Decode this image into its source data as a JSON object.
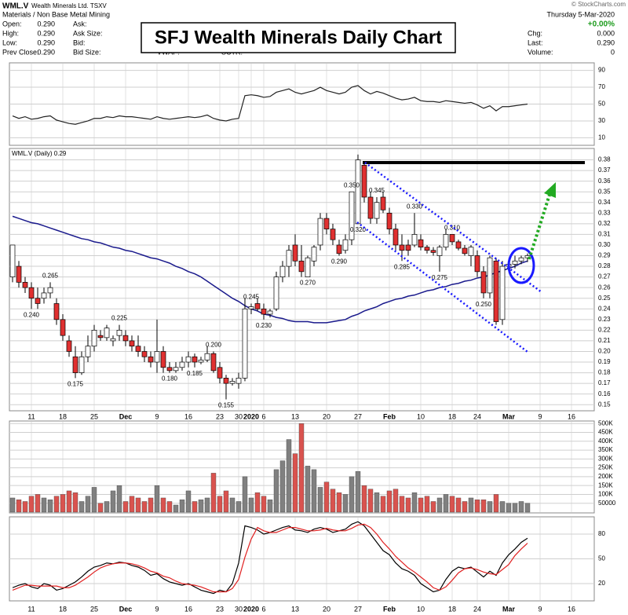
{
  "header": {
    "symbol": "WML.V",
    "name": "Wealth Minerals Ltd. TSXV",
    "sector": "Materials / Non Base Metal Mining",
    "date": "Thursday  5-Mar-2020",
    "copyright": "© StockCharts.com",
    "title": "SFJ Wealth Minerals Daily Chart",
    "fields": [
      [
        "Open:",
        "0.290"
      ],
      [
        "High:",
        "0.290"
      ],
      [
        "Low:",
        "0.290"
      ],
      [
        "Prev Close:",
        "0.290"
      ]
    ],
    "quote": [
      "Ask:",
      "Ask Size:",
      "Bid:",
      "Bid Size:"
    ],
    "vwap": "VWAP:",
    "sctr": "SCTR:",
    "change_pct": "+0.00%",
    "right": [
      [
        "Chg:",
        "0.000"
      ],
      [
        "Last:",
        "0.290"
      ],
      [
        "Volume:",
        "0"
      ]
    ]
  },
  "chart_data": [
    {
      "type": "line",
      "color": "#222222",
      "ylim": [
        2,
        98
      ],
      "yticks": [
        10,
        30,
        50,
        70,
        90
      ],
      "grid": true,
      "values": [
        36,
        33,
        35,
        32,
        33,
        35,
        36,
        31,
        29,
        27,
        26,
        28,
        30,
        33,
        33,
        35,
        34,
        36,
        35,
        35,
        34,
        33,
        32,
        35,
        33,
        32,
        33,
        34,
        35,
        34,
        35,
        37,
        33,
        31,
        30,
        32,
        33,
        60,
        61,
        60,
        58,
        59,
        64,
        66,
        68,
        64,
        62,
        64,
        66,
        70,
        66,
        64,
        62,
        64,
        70,
        72,
        66,
        62,
        65,
        63,
        60,
        57,
        55,
        56,
        58,
        54,
        53,
        53,
        52,
        54,
        53,
        52,
        51,
        52,
        49,
        45,
        48,
        42,
        47,
        47,
        48,
        49,
        50
      ]
    },
    {
      "type": "candlestick",
      "legend": "WML.V (Daily) 0.29",
      "up_color": "#ffffff",
      "down_color": "#e03030",
      "ma_color": "#1a1a8c",
      "ylim": [
        0.145,
        0.39
      ],
      "grid": true,
      "yticks": [
        0.15,
        0.16,
        0.17,
        0.18,
        0.19,
        {
          "value": 0.2,
          "label": "0.20"
        },
        0.21,
        0.22,
        0.23,
        0.24,
        0.25,
        0.26,
        0.27,
        0.28,
        0.29,
        {
          "value": 0.3,
          "label": "0.30"
        },
        0.31,
        0.32,
        0.33,
        0.34,
        0.35,
        0.36,
        0.37,
        0.38
      ],
      "categories": [
        null,
        null,
        null,
        "11",
        null,
        null,
        null,
        null,
        "18",
        null,
        null,
        null,
        null,
        "25",
        null,
        null,
        null,
        null,
        "Dec",
        null,
        null,
        null,
        null,
        "9",
        null,
        null,
        null,
        null,
        "16",
        null,
        null,
        null,
        null,
        "23",
        null,
        null,
        "30",
        null,
        "2020",
        null,
        "6",
        null,
        null,
        null,
        null,
        "13",
        null,
        null,
        null,
        null,
        "20",
        null,
        null,
        null,
        null,
        "27",
        null,
        null,
        null,
        null,
        "Feb",
        null,
        null,
        null,
        null,
        "10",
        null,
        null,
        null,
        null,
        "18",
        null,
        null,
        null,
        "24",
        null,
        null,
        null,
        null,
        "Mar",
        null,
        null,
        null,
        null,
        "9",
        null,
        null,
        null,
        null,
        "16",
        null,
        null,
        null
      ],
      "open": [
        0.27,
        0.28,
        0.265,
        0.26,
        0.25,
        0.25,
        0.255,
        0.245,
        0.23,
        0.21,
        0.195,
        0.18,
        0.195,
        0.205,
        0.215,
        0.213,
        0.21,
        0.215,
        0.215,
        0.21,
        0.205,
        0.2,
        0.195,
        0.19,
        0.2,
        0.185,
        0.182,
        0.185,
        0.19,
        0.195,
        0.19,
        0.192,
        0.198,
        0.185,
        0.175,
        0.17,
        0.17,
        0.175,
        0.24,
        0.245,
        0.24,
        0.235,
        0.24,
        0.27,
        0.28,
        0.3,
        0.285,
        0.27,
        0.285,
        0.3,
        0.325,
        0.315,
        0.3,
        0.295,
        0.305,
        0.32,
        0.375,
        0.345,
        0.325,
        0.345,
        0.33,
        0.315,
        0.3,
        0.3,
        0.3,
        0.305,
        0.298,
        0.295,
        0.29,
        0.298,
        0.31,
        0.303,
        0.297,
        0.29,
        0.29,
        0.275,
        0.255,
        0.285,
        0.23,
        0.28,
        0.282,
        0.285,
        0.288,
        null,
        null,
        null,
        null,
        null,
        null,
        null,
        null,
        null,
        null
      ],
      "high": [
        0.3,
        0.285,
        0.27,
        0.265,
        0.26,
        0.26,
        0.265,
        0.25,
        0.235,
        0.215,
        0.205,
        0.2,
        0.215,
        0.225,
        0.22,
        0.225,
        0.215,
        0.225,
        0.22,
        0.215,
        0.215,
        0.205,
        0.2,
        0.23,
        0.205,
        0.19,
        0.19,
        0.195,
        0.2,
        0.198,
        0.195,
        0.205,
        0.2,
        0.19,
        0.178,
        0.175,
        0.18,
        0.25,
        0.245,
        0.25,
        0.245,
        0.24,
        0.275,
        0.285,
        0.3,
        0.31,
        0.3,
        0.29,
        0.3,
        0.33,
        0.33,
        0.32,
        0.305,
        0.31,
        0.35,
        0.385,
        0.378,
        0.35,
        0.345,
        0.35,
        0.335,
        0.32,
        0.31,
        0.305,
        0.33,
        0.31,
        0.3,
        0.298,
        0.3,
        0.315,
        0.31,
        0.305,
        0.3,
        0.3,
        0.295,
        0.28,
        0.29,
        0.288,
        0.285,
        0.285,
        0.29,
        0.29,
        0.292,
        null,
        null,
        null,
        null,
        null,
        null,
        null,
        null,
        null,
        null
      ],
      "low": [
        0.265,
        0.26,
        0.255,
        0.24,
        0.24,
        0.245,
        0.25,
        0.225,
        0.21,
        0.195,
        0.175,
        0.178,
        0.19,
        0.2,
        0.21,
        0.21,
        0.205,
        0.21,
        0.205,
        0.2,
        0.195,
        0.19,
        0.185,
        0.18,
        0.18,
        0.18,
        0.18,
        0.182,
        0.185,
        0.185,
        0.188,
        0.19,
        0.18,
        0.17,
        0.155,
        0.168,
        0.165,
        0.172,
        0.235,
        0.238,
        0.23,
        0.232,
        0.238,
        0.265,
        0.27,
        0.28,
        0.27,
        0.27,
        0.28,
        0.295,
        0.31,
        0.3,
        0.29,
        0.292,
        0.3,
        0.32,
        0.34,
        0.32,
        0.32,
        0.33,
        0.31,
        0.295,
        0.285,
        0.29,
        0.298,
        0.295,
        0.292,
        0.29,
        0.275,
        0.295,
        0.3,
        0.295,
        0.29,
        0.28,
        0.27,
        0.25,
        0.25,
        0.225,
        0.225,
        0.275,
        0.278,
        0.282,
        0.284,
        null,
        null,
        null,
        null,
        null,
        null,
        null,
        null,
        null,
        null
      ],
      "close": [
        0.3,
        0.265,
        0.26,
        0.25,
        0.245,
        0.255,
        0.26,
        0.23,
        0.215,
        0.2,
        0.18,
        0.195,
        0.205,
        0.22,
        0.213,
        0.222,
        0.212,
        0.22,
        0.21,
        0.205,
        0.2,
        0.195,
        0.19,
        0.2,
        0.185,
        0.182,
        0.185,
        0.19,
        0.195,
        0.19,
        0.192,
        0.198,
        0.182,
        0.175,
        0.17,
        0.172,
        0.175,
        0.24,
        0.242,
        0.24,
        0.235,
        0.238,
        0.27,
        0.28,
        0.295,
        0.285,
        0.275,
        0.288,
        0.298,
        0.325,
        0.315,
        0.305,
        0.292,
        0.305,
        0.35,
        0.38,
        0.345,
        0.325,
        0.34,
        0.333,
        0.315,
        0.3,
        0.295,
        0.295,
        0.31,
        0.298,
        0.295,
        0.293,
        0.298,
        0.31,
        0.303,
        0.297,
        0.292,
        0.298,
        0.275,
        0.255,
        0.288,
        0.228,
        0.28,
        0.282,
        0.285,
        0.288,
        0.29,
        null,
        null,
        null,
        null,
        null,
        null,
        null,
        null,
        null,
        null
      ],
      "ma_values": [
        0.327,
        0.325,
        0.323,
        0.321,
        0.32,
        0.318,
        0.316,
        0.314,
        0.312,
        0.31,
        0.308,
        0.306,
        0.305,
        0.303,
        0.302,
        0.3,
        0.298,
        0.297,
        0.295,
        0.294,
        0.292,
        0.29,
        0.288,
        0.287,
        0.285,
        0.283,
        0.28,
        0.278,
        0.275,
        0.273,
        0.27,
        0.266,
        0.262,
        0.258,
        0.254,
        0.25,
        0.247,
        0.243,
        0.24,
        0.238,
        0.235,
        0.234,
        0.232,
        0.231,
        0.229,
        0.228,
        0.228,
        0.228,
        0.227,
        0.227,
        0.227,
        0.228,
        0.229,
        0.23,
        0.233,
        0.235,
        0.238,
        0.24,
        0.242,
        0.245,
        0.247,
        0.249,
        0.25,
        0.252,
        0.253,
        0.255,
        0.257,
        0.258,
        0.26,
        0.261,
        0.263,
        0.264,
        0.266,
        0.267,
        0.269,
        0.27,
        0.272,
        0.274,
        0.276,
        0.278,
        0.28,
        0.283,
        0.285,
        null,
        null,
        null,
        null,
        null,
        null,
        null,
        null,
        null,
        null
      ],
      "annotations": [
        {
          "at": 3,
          "value": 0.24,
          "label": "0.240"
        },
        {
          "at": 6,
          "value": 0.265,
          "label": "0.265"
        },
        {
          "at": 10,
          "value": 0.175,
          "label": "0.175"
        },
        {
          "at": 17,
          "value": 0.225,
          "label": "0.225"
        },
        {
          "at": 25,
          "value": 0.18,
          "label": "0.180"
        },
        {
          "at": 29,
          "value": 0.185,
          "label": "0.185"
        },
        {
          "at": 32,
          "value": 0.2,
          "label": "0.200"
        },
        {
          "at": 34,
          "value": 0.155,
          "label": "0.155"
        },
        {
          "at": 38,
          "value": 0.245,
          "label": "0.245"
        },
        {
          "at": 40,
          "value": 0.23,
          "label": "0.230"
        },
        {
          "at": 47,
          "value": 0.27,
          "label": "0.270"
        },
        {
          "at": 52,
          "value": 0.29,
          "label": "0.290"
        },
        {
          "at": 54,
          "value": 0.35,
          "label": "0.350"
        },
        {
          "at": 55,
          "value": 0.32,
          "label": "0.320"
        },
        {
          "at": 58,
          "value": 0.345,
          "label": "0.345"
        },
        {
          "at": 62,
          "value": 0.285,
          "label": "0.285"
        },
        {
          "at": 64,
          "value": 0.33,
          "label": "0.330"
        },
        {
          "at": 68,
          "value": 0.275,
          "label": "0.275"
        },
        {
          "at": 70,
          "value": 0.31,
          "label": "0.310"
        },
        {
          "at": 75,
          "value": 0.25,
          "label": "0.250"
        }
      ]
    },
    {
      "type": "bar",
      "up_color": "#808080",
      "down_color": "#d9534f",
      "ylim": [
        0,
        510000
      ],
      "grid": true,
      "yticks": [
        {
          "value": 500000,
          "label": "500K"
        },
        {
          "value": 450000,
          "label": "450K"
        },
        {
          "value": 400000,
          "label": "400K"
        },
        {
          "value": 350000,
          "label": "350K"
        },
        {
          "value": 300000,
          "label": "300K"
        },
        {
          "value": 250000,
          "label": "250K"
        },
        {
          "value": 200000,
          "label": "200K"
        },
        {
          "value": 150000,
          "label": "150K"
        },
        {
          "value": 100000,
          "label": "100K"
        },
        50000
      ],
      "values": [
        80000,
        70000,
        60000,
        90000,
        100000,
        80000,
        70000,
        90000,
        100000,
        120000,
        110000,
        60000,
        90000,
        140000,
        50000,
        60000,
        120000,
        150000,
        60000,
        90000,
        80000,
        60000,
        80000,
        150000,
        80000,
        60000,
        40000,
        70000,
        120000,
        60000,
        70000,
        80000,
        220000,
        90000,
        120000,
        80000,
        60000,
        200000,
        80000,
        110000,
        90000,
        70000,
        240000,
        290000,
        410000,
        330000,
        500000,
        260000,
        240000,
        140000,
        170000,
        130000,
        110000,
        100000,
        200000,
        230000,
        150000,
        130000,
        110000,
        90000,
        120000,
        130000,
        90000,
        80000,
        110000,
        80000,
        90000,
        60000,
        80000,
        100000,
        90000,
        80000,
        60000,
        80000,
        70000,
        70000,
        60000,
        100000,
        60000,
        50000,
        50000,
        60000,
        50000
      ]
    },
    {
      "type": "line",
      "ylim": [
        0,
        100
      ],
      "yticks": [
        20,
        50,
        80
      ],
      "grid": true,
      "categories": [
        null,
        null,
        null,
        "11",
        null,
        null,
        null,
        null,
        "18",
        null,
        null,
        null,
        null,
        "25",
        null,
        null,
        null,
        null,
        "Dec",
        null,
        null,
        null,
        null,
        "9",
        null,
        null,
        null,
        null,
        "16",
        null,
        null,
        null,
        null,
        "23",
        null,
        null,
        "30",
        null,
        "2020",
        null,
        "6",
        null,
        null,
        null,
        null,
        "13",
        null,
        null,
        null,
        null,
        "20",
        null,
        null,
        null,
        null,
        "27",
        null,
        null,
        null,
        null,
        "Feb",
        null,
        null,
        null,
        null,
        "10",
        null,
        null,
        null,
        null,
        "18",
        null,
        null,
        null,
        "24",
        null,
        null,
        null,
        null,
        "Mar",
        null,
        null,
        null,
        null,
        "9",
        null,
        null,
        null,
        null,
        "16",
        null,
        null,
        null
      ],
      "series": [
        {
          "color": "#000000",
          "values": [
            15,
            18,
            20,
            16,
            14,
            20,
            18,
            12,
            14,
            18,
            22,
            28,
            35,
            40,
            42,
            45,
            44,
            46,
            45,
            42,
            40,
            36,
            30,
            32,
            26,
            22,
            20,
            18,
            20,
            16,
            12,
            10,
            8,
            12,
            10,
            20,
            45,
            90,
            88,
            85,
            80,
            82,
            85,
            88,
            90,
            85,
            84,
            82,
            86,
            88,
            86,
            82,
            84,
            86,
            92,
            95,
            90,
            80,
            70,
            60,
            55,
            45,
            38,
            35,
            30,
            20,
            15,
            10,
            12,
            25,
            35,
            40,
            38,
            40,
            34,
            28,
            35,
            30,
            45,
            55,
            62,
            70,
            75,
            null,
            null,
            null,
            null,
            null,
            null,
            null,
            null,
            null,
            null
          ]
        },
        {
          "color": "#e02020",
          "values": [
            12,
            15,
            18,
            18,
            17,
            17,
            17,
            17,
            15,
            15,
            18,
            23,
            28,
            34,
            39,
            42,
            44,
            45,
            45,
            44,
            42,
            39,
            35,
            33,
            29,
            27,
            23,
            20,
            19,
            18,
            16,
            13,
            10,
            10,
            10,
            14,
            25,
            52,
            74,
            88,
            84,
            82,
            82,
            85,
            88,
            88,
            86,
            84,
            84,
            85,
            87,
            85,
            84,
            84,
            87,
            91,
            92,
            88,
            80,
            70,
            62,
            53,
            46,
            39,
            34,
            28,
            22,
            15,
            12,
            16,
            24,
            33,
            38,
            39,
            37,
            34,
            32,
            31,
            37,
            43,
            54,
            62,
            69,
            null,
            null,
            null,
            null,
            null,
            null,
            null,
            null,
            null,
            null
          ]
        }
      ]
    }
  ]
}
